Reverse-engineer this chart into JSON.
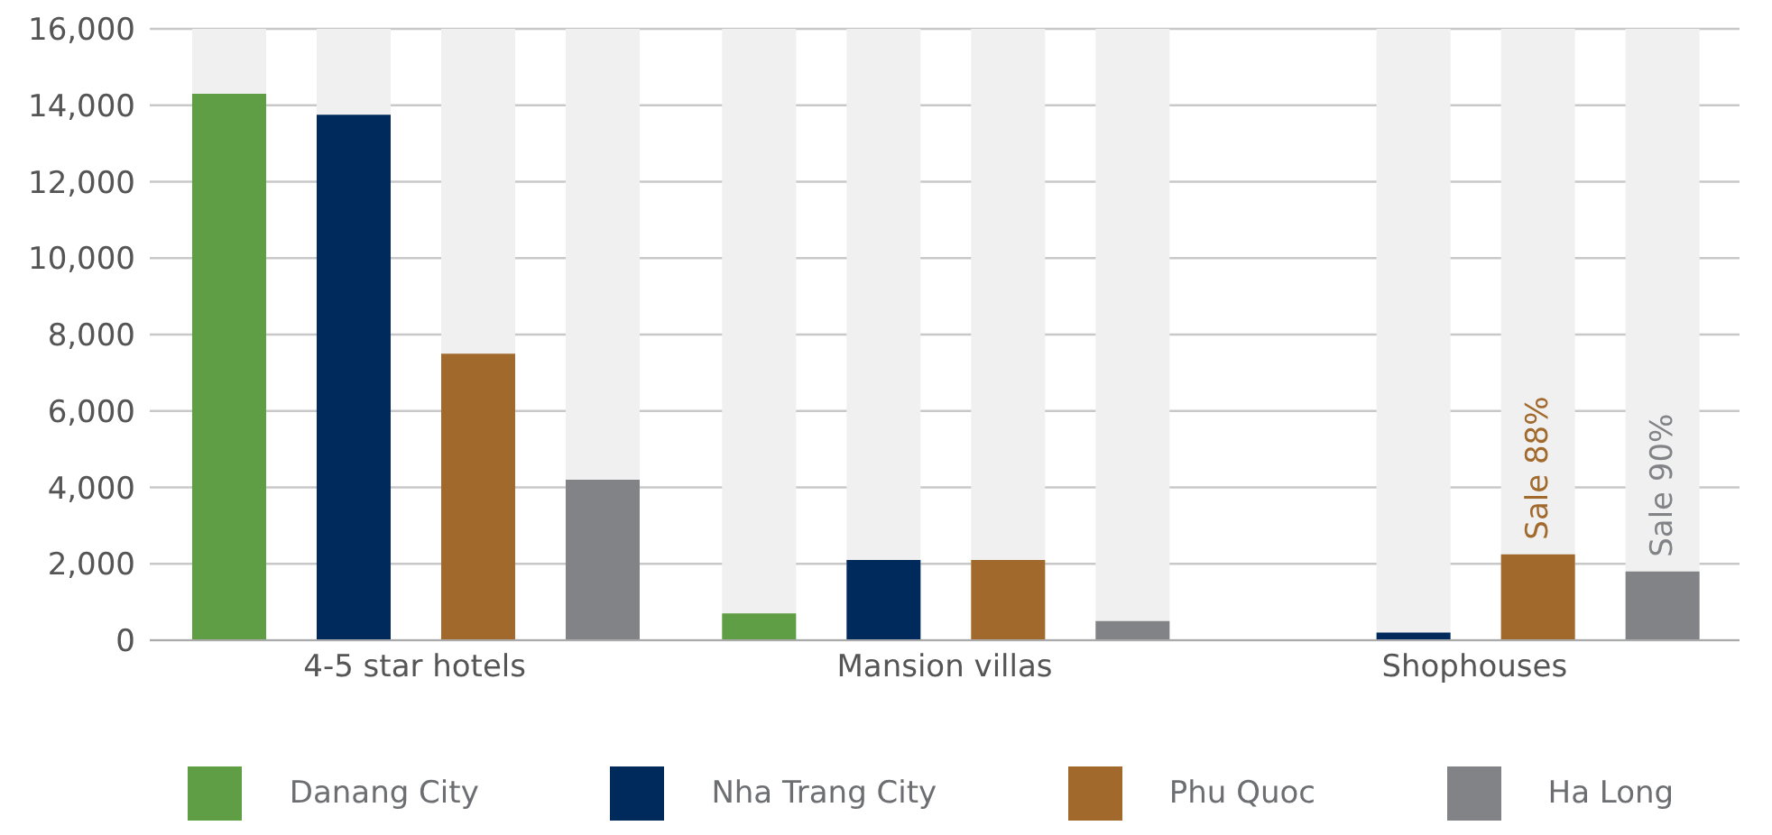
{
  "chart_data": {
    "type": "bar",
    "categories": [
      "4-5 star hotels",
      "Mansion villas",
      "Shophouses"
    ],
    "series": [
      {
        "name": "Danang City",
        "color": "#5f9e44",
        "values": [
          14300,
          700,
          0
        ]
      },
      {
        "name": "Nha Trang City",
        "color": "#002a5c",
        "values": [
          13750,
          2100,
          200
        ]
      },
      {
        "name": "Phu Quoc",
        "color": "#a2692d",
        "values": [
          7500,
          2100,
          2250
        ],
        "value_labels": [
          null,
          null,
          "Sale 88%"
        ]
      },
      {
        "name": "Ha Long",
        "color": "#828387",
        "values": [
          4200,
          500,
          1800
        ],
        "value_labels": [
          null,
          null,
          "Sale 90%"
        ]
      }
    ],
    "ylim": [
      0,
      16000
    ],
    "yticks": [
      0,
      {
        "value": 2000,
        "label": "2,000"
      },
      {
        "value": 4000,
        "label": "4,000"
      },
      {
        "value": 6000,
        "label": "6,000"
      },
      {
        "value": 8000,
        "label": "8,000"
      },
      {
        "value": 10000,
        "label": "10,000"
      },
      {
        "value": 12000,
        "label": "12,000"
      },
      {
        "value": 14000,
        "label": "14,000"
      },
      {
        "value": 16000,
        "label": "16,000"
      }
    ],
    "grid": "y",
    "legend": "bottom"
  }
}
